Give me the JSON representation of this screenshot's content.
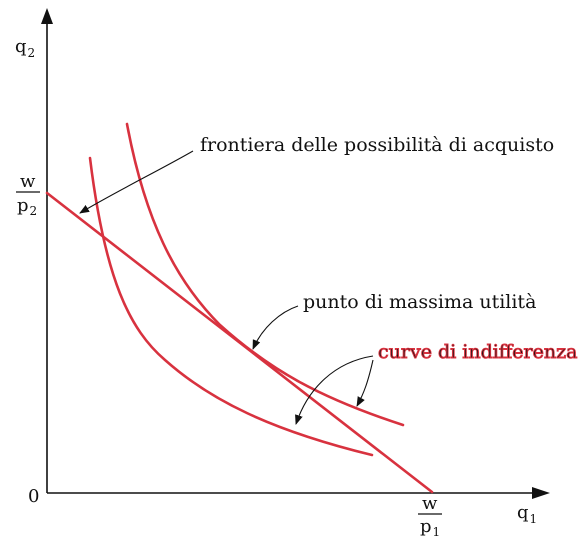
{
  "diagram": {
    "axes": {
      "y_label": "q",
      "y_label_sub": "2",
      "x_label": "q",
      "x_label_sub": "1",
      "origin": "0"
    },
    "intercepts": {
      "y_numer": "w",
      "y_denom": "p",
      "y_denom_sub": "2",
      "x_numer": "w",
      "x_denom": "p",
      "x_denom_sub": "1"
    },
    "annotations": {
      "budget": "frontiera delle possibilità di acquisto",
      "max_utility": "punto di massima utilità",
      "indifference": "curve di indifferenza"
    },
    "colors": {
      "curve": "#d8323f",
      "axis": "#111111"
    }
  }
}
